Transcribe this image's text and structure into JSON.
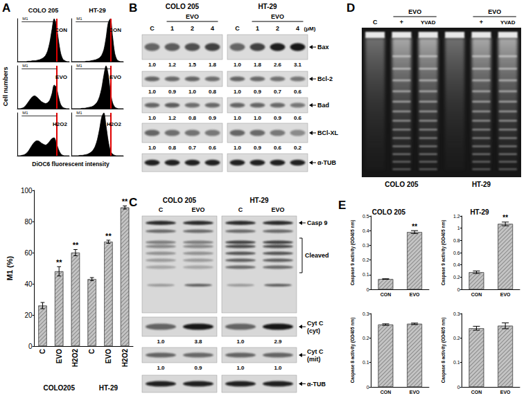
{
  "panel_labels": [
    "A",
    "B",
    "C",
    "D",
    "E"
  ],
  "flow_cytometry": {
    "columns": [
      "COLO 205",
      "HT-29"
    ],
    "y_label": "Cell numbers",
    "x_label": "DiOC6 fluorescent intensity",
    "gate_label": "M1",
    "x": [
      0,
      1,
      2,
      3,
      4,
      5,
      6,
      7,
      8,
      9,
      10,
      11,
      12,
      13,
      14,
      15,
      16,
      17,
      18,
      19,
      20,
      21,
      22,
      23,
      24
    ],
    "xlim": [
      0,
      24
    ],
    "ylim": [
      0,
      100
    ],
    "gate": [
      2,
      18
    ],
    "marker": 18,
    "marker_color": "#e00000",
    "grid": false,
    "tick_labels": false,
    "panels": [
      [
        {
          "label": "CON",
          "values": [
            0,
            0,
            0,
            0,
            0,
            1,
            1,
            2,
            2,
            3,
            4,
            6,
            9,
            14,
            25,
            45,
            75,
            100,
            85,
            50,
            20,
            6,
            2,
            0,
            0
          ]
        },
        {
          "label": "EVO",
          "values": [
            0,
            0,
            1,
            3,
            8,
            15,
            22,
            28,
            30,
            27,
            22,
            17,
            14,
            12,
            14,
            20,
            35,
            55,
            50,
            28,
            10,
            3,
            1,
            0,
            0
          ]
        },
        {
          "label": "H2O2",
          "values": [
            0,
            0,
            1,
            2,
            5,
            10,
            18,
            26,
            32,
            35,
            34,
            30,
            27,
            25,
            28,
            34,
            40,
            42,
            30,
            15,
            5,
            1,
            0,
            0,
            0
          ]
        }
      ],
      [
        {
          "label": "CON",
          "values": [
            0,
            0,
            0,
            0,
            0,
            0,
            0,
            1,
            1,
            2,
            3,
            4,
            6,
            9,
            15,
            28,
            55,
            90,
            100,
            60,
            20,
            5,
            1,
            0,
            0
          ]
        },
        {
          "label": "EVO",
          "values": [
            0,
            0,
            0,
            0,
            0,
            1,
            1,
            2,
            3,
            4,
            6,
            10,
            16,
            28,
            48,
            78,
            100,
            80,
            40,
            14,
            4,
            1,
            0,
            0,
            0
          ]
        },
        {
          "label": "H2O2",
          "values": [
            0,
            0,
            0,
            0,
            1,
            1,
            2,
            3,
            5,
            8,
            13,
            22,
            38,
            62,
            90,
            100,
            70,
            35,
            12,
            4,
            1,
            0,
            0,
            0,
            0
          ]
        }
      ]
    ]
  },
  "chart_data": [
    {
      "type": "bar",
      "ylabel": "M1 (%)",
      "categories": [
        "C",
        "EVO",
        "H2O2",
        "C",
        "EVO",
        "H2O2"
      ],
      "values": [
        26,
        48,
        60,
        43,
        67,
        89
      ],
      "errors": [
        2,
        3,
        2,
        1,
        1,
        1
      ],
      "annotations": [
        null,
        "**",
        "**",
        null,
        "**",
        "**"
      ],
      "groups": [
        {
          "label": "COLO205",
          "from": 0,
          "to": 2
        },
        {
          "label": "HT-29",
          "from": 3,
          "to": 5
        }
      ],
      "ylim": [
        0,
        100
      ],
      "yticks": [
        0,
        20,
        40,
        60,
        80,
        100
      ],
      "color": "#c4c4c4",
      "grid": false
    },
    {
      "type": "bar",
      "title": "COLO 205",
      "ylabel": "Caspase 9 activity (OD405 nm)",
      "categories": [
        "CON",
        "EVO"
      ],
      "values": [
        0.07,
        0.39
      ],
      "errors": [
        0.002,
        0.01
      ],
      "annotations": [
        null,
        "**"
      ],
      "ylim": [
        0,
        0.5
      ],
      "yticks": [
        0,
        0.1,
        0.2,
        0.3,
        0.4,
        0.5
      ],
      "color": "#c4c4c4",
      "grid": false
    },
    {
      "type": "bar",
      "title": "HT-29",
      "ylabel": "Caspase 9 activity (OD405 nm)",
      "categories": [
        "CON",
        "EVO"
      ],
      "values": [
        0.28,
        1.07
      ],
      "errors": [
        0.02,
        0.03
      ],
      "annotations": [
        null,
        "**"
      ],
      "ylim": [
        0,
        1.2
      ],
      "yticks": [
        0,
        0.2,
        0.4,
        0.6,
        0.8,
        1,
        1.2
      ],
      "color": "#c4c4c4",
      "grid": false
    },
    {
      "type": "bar",
      "ylabel": "Caspase 8 activity (OD405 nm)",
      "categories": [
        "CON",
        "EVO"
      ],
      "values": [
        0.255,
        0.258
      ],
      "errors": [
        0.003,
        0.003
      ],
      "ylim": [
        0,
        0.3
      ],
      "yticks": [
        0,
        0.1,
        0.2,
        0.3
      ],
      "color": "#c4c4c4",
      "grid": false
    },
    {
      "type": "bar",
      "ylabel": "Caspase 8 activity (OD405 nm)",
      "categories": [
        "CON",
        "EVO"
      ],
      "values": [
        0.24,
        0.25
      ],
      "errors": [
        0.008,
        0.012
      ],
      "ylim": [
        0,
        0.3
      ],
      "yticks": [
        0,
        0.1,
        0.2,
        0.3
      ],
      "color": "#c4c4c4",
      "grid": false
    }
  ],
  "blot_B": {
    "cell_lines": [
      "COLO 205",
      "HT-29"
    ],
    "treatment": "EVO",
    "lanes": [
      "C",
      "1",
      "2",
      "4"
    ],
    "unit": "(μM)",
    "rows": [
      {
        "label": "Bax",
        "ratios": [
          "1.0",
          "1.2",
          "1.5",
          "1.8",
          "1.0",
          "1.8",
          "2.6",
          "3.1"
        ]
      },
      {
        "label": "Bcl-2",
        "ratios": [
          "1.0",
          "0.9",
          "1.0",
          "0.8",
          "1.0",
          "0.9",
          "0.7",
          "0.6"
        ]
      },
      {
        "label": "Bad",
        "ratios": [
          "1.0",
          "1.2",
          "0.8",
          "0.9",
          "1.0",
          "1.0",
          "0.9",
          "0.6"
        ]
      },
      {
        "label": "BCl-XL",
        "ratios": [
          "1.0",
          "0.8",
          "0.7",
          "0.6",
          "1.0",
          "0.9",
          "0.6",
          "0.2"
        ]
      },
      {
        "label": "α-TUB"
      }
    ]
  },
  "blot_C": {
    "cell_lines": [
      "COLO 205",
      "HT-29"
    ],
    "lanes": [
      "C",
      "EVO",
      "C",
      "EVO"
    ],
    "rows": [
      {
        "label": [
          "Casp 9"
        ],
        "bracket": "Cleaved"
      },
      {
        "label": [
          "Cyt C",
          "(cyt)"
        ],
        "ratios": [
          "1.0",
          "3.8",
          "1.0",
          "2.9"
        ]
      },
      {
        "label": [
          "Cyt C",
          "(mit)"
        ],
        "ratios": [
          "1.0",
          "0.9",
          "1.0",
          "1.0"
        ]
      },
      {
        "label": [
          "α-TUB"
        ]
      }
    ]
  },
  "gel_D": {
    "cell_lines": [
      "COLO 205",
      "HT-29"
    ],
    "treatment": "EVO",
    "lanes": [
      "C",
      "+",
      "YVAD",
      null,
      "+",
      "YVAD"
    ]
  }
}
